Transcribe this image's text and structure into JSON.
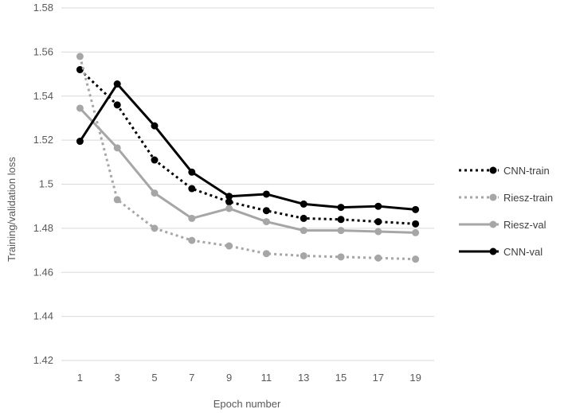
{
  "chart_data": {
    "type": "line",
    "xlabel": "Epoch number",
    "ylabel": "Training/validation loss",
    "categories": [
      "1",
      "3",
      "5",
      "7",
      "9",
      "11",
      "13",
      "15",
      "17",
      "19"
    ],
    "ylim": [
      1.42,
      1.58
    ],
    "yticks": [
      "1.42",
      "1.44",
      "1.46",
      "1.48",
      "1.5",
      "1.52",
      "1.54",
      "1.56",
      "1.58"
    ],
    "grid": true,
    "legend_position": "right",
    "series": [
      {
        "name": "CNN-train",
        "color": "#000000",
        "style": "dotted",
        "values": [
          1.552,
          1.536,
          1.511,
          1.498,
          1.492,
          1.488,
          1.4845,
          1.484,
          1.483,
          1.482
        ]
      },
      {
        "name": "Riesz-train",
        "color": "#a6a6a6",
        "style": "dotted",
        "values": [
          1.558,
          1.493,
          1.48,
          1.4745,
          1.472,
          1.4685,
          1.4675,
          1.467,
          1.4665,
          1.466
        ]
      },
      {
        "name": "Riesz-val",
        "color": "#a6a6a6",
        "style": "solid",
        "values": [
          1.5345,
          1.5165,
          1.496,
          1.4845,
          1.489,
          1.483,
          1.479,
          1.479,
          1.4785,
          1.478
        ]
      },
      {
        "name": "CNN-val",
        "color": "#000000",
        "style": "solid",
        "values": [
          1.5195,
          1.5455,
          1.5265,
          1.5055,
          1.4945,
          1.4955,
          1.491,
          1.4895,
          1.49,
          1.4885
        ]
      }
    ]
  }
}
